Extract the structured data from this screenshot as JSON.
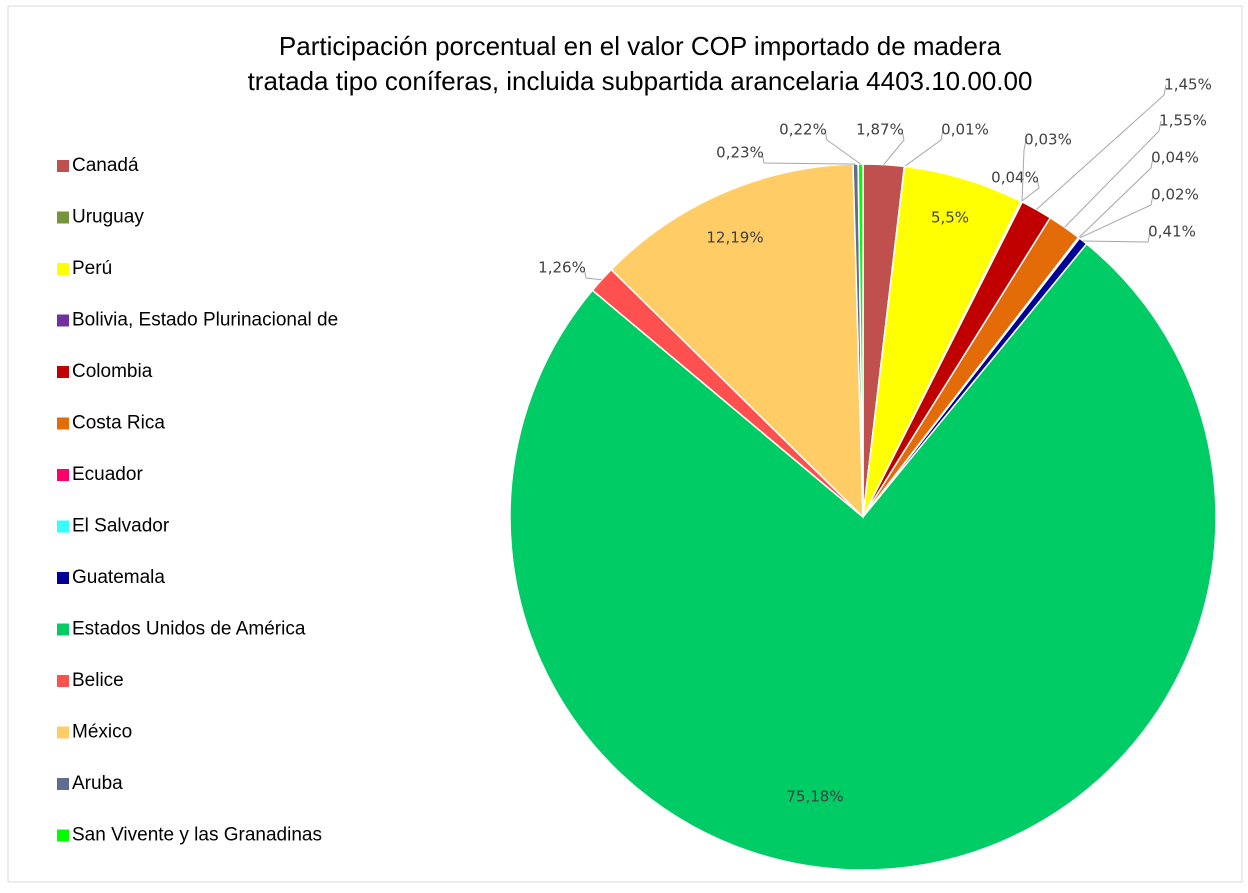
{
  "chart_data": {
    "type": "pie",
    "title": [
      "Participación porcentual en el valor COP importado de madera",
      "tratada tipo coníferas, incluida subpartida arancelaria 4403.10.00.00"
    ],
    "categories": [
      "Canadá",
      "Uruguay",
      "Perú",
      "Bolivia, Estado Plurinacional de",
      null,
      "Colombia",
      "Costa Rica",
      "Ecuador",
      "El Salvador",
      "Guatemala",
      "Estados Unidos de América",
      "Belice",
      "México",
      "Aruba",
      "San Vivente y las Granadinas"
    ],
    "values": [
      1.87,
      0.01,
      5.5,
      0.04,
      0.03,
      1.45,
      1.55,
      0.04,
      0.02,
      0.41,
      75.18,
      1.26,
      12.19,
      0.23,
      0.22
    ],
    "value_labels": [
      "1,87%",
      "0,01%",
      "5,5%",
      "0,04%",
      "0,03%",
      "1,45%",
      "1,55%",
      "0,04%",
      "0,02%",
      "0,41%",
      "75,18%",
      "1,26%",
      "12,19%",
      "0,23%",
      "0,22%"
    ],
    "colors": [
      "#c0504d",
      "#77933c",
      "#ffff00",
      "#7030a0",
      "#999999",
      "#c00000",
      "#e36c09",
      "#ff0066",
      "#33ffff",
      "#000099",
      "#00cc66",
      "#ff5050",
      "#ffcc66",
      "#5f6b8f",
      "#00ff00"
    ],
    "legend": "left"
  }
}
